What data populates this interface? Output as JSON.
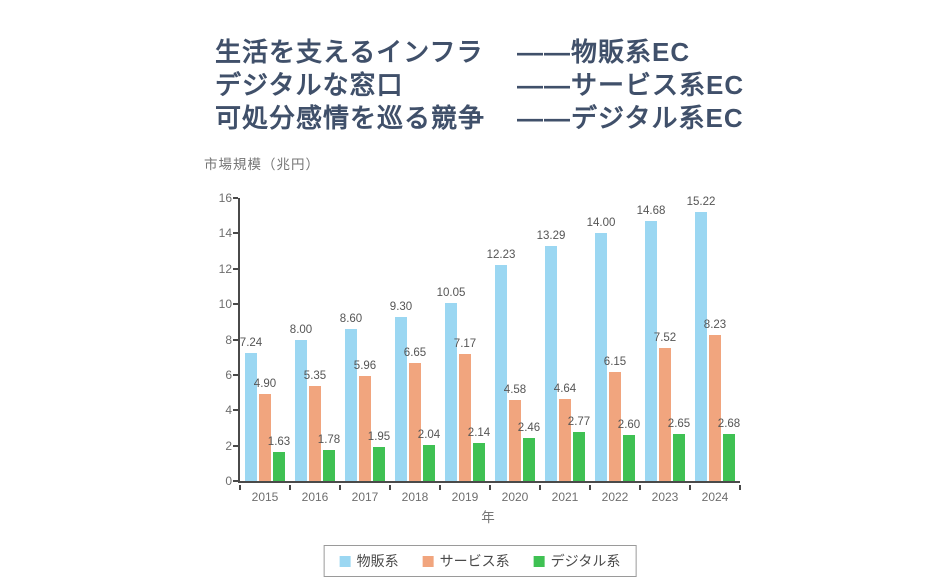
{
  "header": {
    "text_color": "#40506A",
    "lines": [
      {
        "left": "生活を支えるインフラ",
        "right": "——物販系EC"
      },
      {
        "left": "デジタルな窓口",
        "right": "——サービス系EC"
      },
      {
        "left": "可処分感情を巡る競争",
        "right": "——デジタル系EC"
      }
    ]
  },
  "chart_data": {
    "type": "bar",
    "title": "",
    "ylabel": "市場規模（兆円）",
    "xlabel": "年",
    "ylim": [
      0,
      16
    ],
    "ytick_step": 2,
    "grid": false,
    "legend_position": "bottom",
    "value_label_decimals": 2,
    "categories": [
      "2015",
      "2016",
      "2017",
      "2018",
      "2019",
      "2020",
      "2021",
      "2022",
      "2023",
      "2024"
    ],
    "series": [
      {
        "name": "物販系",
        "color": "#9BD7F2",
        "values": [
          7.24,
          8.0,
          8.6,
          9.3,
          10.05,
          12.23,
          13.29,
          14.0,
          14.68,
          15.22
        ]
      },
      {
        "name": "サービス系",
        "color": "#F1A57E",
        "values": [
          4.9,
          5.35,
          5.96,
          6.65,
          7.17,
          4.58,
          4.64,
          6.15,
          7.52,
          8.23
        ]
      },
      {
        "name": "デジタル系",
        "color": "#3FC153",
        "values": [
          1.63,
          1.78,
          1.95,
          2.04,
          2.14,
          2.46,
          2.77,
          2.6,
          2.65,
          2.68
        ]
      }
    ],
    "axis_color": "#4a4a4a"
  }
}
